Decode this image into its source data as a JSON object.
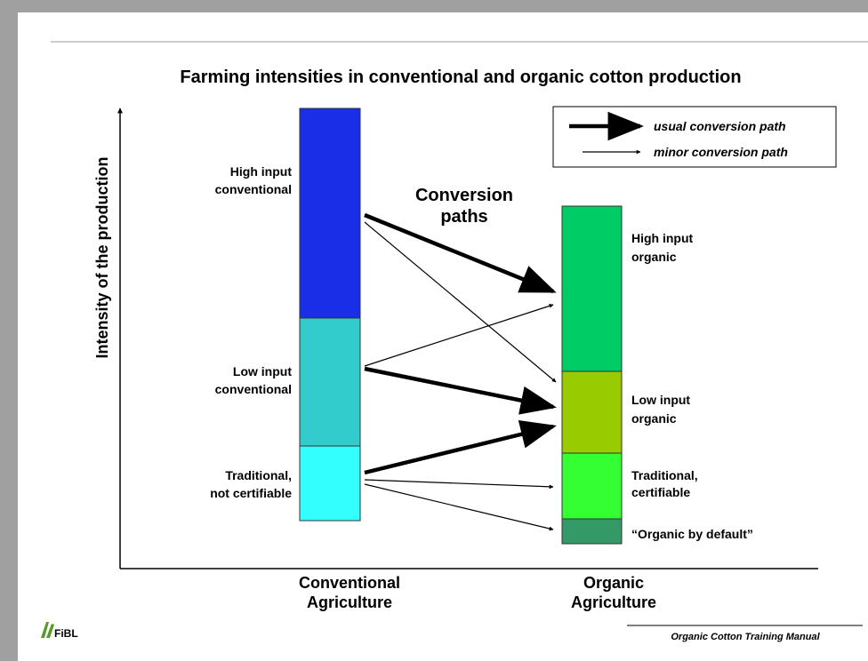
{
  "title": "Farming intensities in conventional and organic cotton production",
  "y_axis_label": "Intensity of the production",
  "conversion_label": [
    "Conversion",
    "paths"
  ],
  "columns": [
    {
      "label": [
        "Conventional",
        "Agriculture"
      ],
      "segments": [
        {
          "label": [
            "High input",
            "conventional"
          ]
        },
        {
          "label": [
            "Low input",
            "conventional"
          ]
        },
        {
          "label": [
            "Traditional,",
            "not certifiable"
          ]
        }
      ]
    },
    {
      "label": [
        "Organic",
        "Agriculture"
      ],
      "segments": [
        {
          "label": [
            "High input",
            "organic"
          ]
        },
        {
          "label": [
            "Low input",
            "organic"
          ]
        },
        {
          "label": [
            "Traditional,",
            "certifiable"
          ]
        },
        {
          "label": [
            "“Organic by default”"
          ]
        }
      ]
    }
  ],
  "legend": [
    "usual conversion path",
    "minor conversion path"
  ],
  "footer": "Organic Cotton Training Manual",
  "logo": "FiBL"
}
